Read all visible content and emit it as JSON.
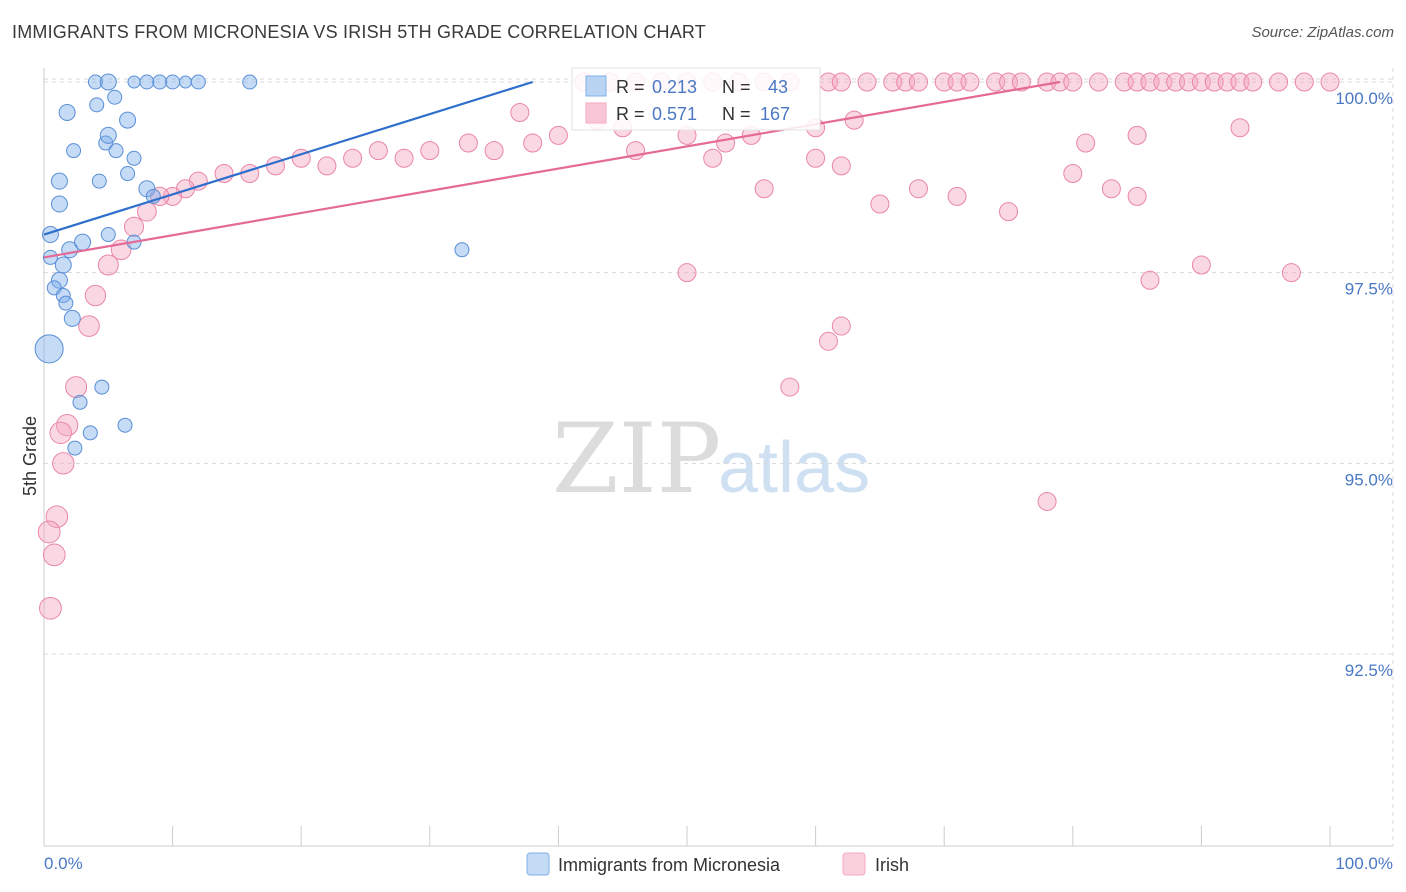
{
  "header": {
    "title": "IMMIGRANTS FROM MICRONESIA VS IRISH 5TH GRADE CORRELATION CHART",
    "source": "Source: ZipAtlas.com"
  },
  "watermark": {
    "zip": "ZIP",
    "atlas": "atlas"
  },
  "colors": {
    "blue": "#7fb0ea",
    "blue_stroke": "#5a8fd6",
    "blue_line": "#2f6fcc",
    "pink": "#f4a9c2",
    "pink_stroke": "#ea86a8",
    "pink_line": "#e46a97",
    "grid": "#d8d8d8",
    "tick_text": "#4a78c4"
  },
  "stats": {
    "blue": {
      "r_label": "R =",
      "r_value": "0.213",
      "n_label": "N =",
      "n_value": "43"
    },
    "pink": {
      "r_label": "R =",
      "r_value": "0.571",
      "n_label": "N =",
      "n_value": "167"
    }
  },
  "chart_data": {
    "type": "scatter",
    "title": "IMMIGRANTS FROM MICRONESIA VS IRISH 5TH GRADE CORRELATION CHART",
    "xlabel": "",
    "ylabel": "5th Grade",
    "xlim": [
      0,
      100
    ],
    "ylim": [
      90.2,
      100.2
    ],
    "x_tick_labels": [
      "0.0%",
      "100.0%"
    ],
    "y_ticks": [
      92.5,
      95.0,
      97.5,
      100.0
    ],
    "y_tick_labels": [
      "92.5%",
      "95.0%",
      "97.5%",
      "100.0%"
    ],
    "legend": [
      "Immigrants from Micronesia",
      "Irish"
    ],
    "series": [
      {
        "name": "Immigrants from Micronesia",
        "trend": [
          [
            0,
            98.0
          ],
          [
            38,
            100.0
          ]
        ],
        "points": [
          [
            4,
            100
          ],
          [
            5,
            100
          ],
          [
            7,
            100
          ],
          [
            8,
            100
          ],
          [
            9,
            100
          ],
          [
            10,
            100
          ],
          [
            11,
            100
          ],
          [
            12,
            100
          ],
          [
            16,
            100
          ],
          [
            1.8,
            99.6
          ],
          [
            4.1,
            99.7
          ],
          [
            6.5,
            99.5
          ],
          [
            5.5,
            99.8
          ],
          [
            4.8,
            99.2
          ],
          [
            5,
            99.3
          ],
          [
            5.6,
            99.1
          ],
          [
            2.3,
            99.1
          ],
          [
            7,
            99.0
          ],
          [
            1.2,
            98.7
          ],
          [
            4.3,
            98.7
          ],
          [
            6.5,
            98.8
          ],
          [
            8,
            98.6
          ],
          [
            8.5,
            98.5
          ],
          [
            1.2,
            98.4
          ],
          [
            0.5,
            98.0
          ],
          [
            5,
            98.0
          ],
          [
            7,
            97.9
          ],
          [
            2,
            97.8
          ],
          [
            3,
            97.9
          ],
          [
            0.5,
            97.7
          ],
          [
            1.5,
            97.6
          ],
          [
            1.2,
            97.4
          ],
          [
            0.8,
            97.3
          ],
          [
            1.5,
            97.2
          ],
          [
            1.7,
            97.1
          ],
          [
            2.2,
            96.9
          ],
          [
            0.4,
            96.5
          ],
          [
            4.5,
            96.0
          ],
          [
            2.8,
            95.8
          ],
          [
            3.6,
            95.4
          ],
          [
            6.3,
            95.5
          ],
          [
            2.4,
            95.2
          ],
          [
            32.5,
            97.8
          ]
        ],
        "sizes": [
          7,
          8,
          6,
          7,
          7,
          7,
          6,
          7,
          7,
          8,
          7,
          8,
          7,
          7,
          8,
          7,
          7,
          7,
          8,
          7,
          7,
          8,
          7,
          8,
          8,
          7,
          7,
          8,
          8,
          7,
          8,
          8,
          7,
          7,
          7,
          8,
          14,
          7,
          7,
          7,
          7,
          7,
          7
        ]
      },
      {
        "name": "Irish",
        "trend": [
          [
            0,
            97.7
          ],
          [
            79,
            100.0
          ]
        ],
        "points": [
          [
            42,
            100
          ],
          [
            44,
            100
          ],
          [
            46,
            100
          ],
          [
            48,
            100
          ],
          [
            50,
            100
          ],
          [
            52,
            100
          ],
          [
            54,
            100
          ],
          [
            56,
            100
          ],
          [
            58,
            100
          ],
          [
            61,
            100
          ],
          [
            62,
            100
          ],
          [
            64,
            100
          ],
          [
            66,
            100
          ],
          [
            67,
            100
          ],
          [
            68,
            100
          ],
          [
            70,
            100
          ],
          [
            71,
            100
          ],
          [
            72,
            100
          ],
          [
            74,
            100
          ],
          [
            75,
            100
          ],
          [
            76,
            100
          ],
          [
            78,
            100
          ],
          [
            79,
            100
          ],
          [
            80,
            100
          ],
          [
            82,
            100
          ],
          [
            84,
            100
          ],
          [
            85,
            100
          ],
          [
            86,
            100
          ],
          [
            87,
            100
          ],
          [
            88,
            100
          ],
          [
            89,
            100
          ],
          [
            90,
            100
          ],
          [
            91,
            100
          ],
          [
            92,
            100
          ],
          [
            93,
            100
          ],
          [
            94,
            100
          ],
          [
            96,
            100
          ],
          [
            98,
            100
          ],
          [
            100,
            100
          ],
          [
            37,
            99.6
          ],
          [
            43,
            99.5
          ],
          [
            45,
            99.4
          ],
          [
            50,
            99.3
          ],
          [
            53,
            99.2
          ],
          [
            55,
            99.3
          ],
          [
            60,
            99.4
          ],
          [
            63,
            99.5
          ],
          [
            40,
            99.3
          ],
          [
            38,
            99.2
          ],
          [
            35,
            99.1
          ],
          [
            33,
            99.2
          ],
          [
            30,
            99.1
          ],
          [
            28,
            99.0
          ],
          [
            26,
            99.1
          ],
          [
            24,
            99.0
          ],
          [
            22,
            98.9
          ],
          [
            20,
            99.0
          ],
          [
            18,
            98.9
          ],
          [
            16,
            98.8
          ],
          [
            14,
            98.8
          ],
          [
            12,
            98.7
          ],
          [
            11,
            98.6
          ],
          [
            10,
            98.5
          ],
          [
            9,
            98.5
          ],
          [
            8,
            98.3
          ],
          [
            7,
            98.1
          ],
          [
            6,
            97.8
          ],
          [
            5,
            97.6
          ],
          [
            4,
            97.2
          ],
          [
            3.5,
            96.8
          ],
          [
            2.5,
            96.0
          ],
          [
            1.8,
            95.5
          ],
          [
            1.5,
            95.0
          ],
          [
            1,
            94.3
          ],
          [
            0.8,
            93.8
          ],
          [
            0.5,
            93.1
          ],
          [
            0.4,
            94.1
          ],
          [
            1.3,
            95.4
          ],
          [
            46,
            99.1
          ],
          [
            52,
            99.0
          ],
          [
            56,
            98.6
          ],
          [
            60,
            99.0
          ],
          [
            62,
            98.9
          ],
          [
            65,
            98.4
          ],
          [
            68,
            98.6
          ],
          [
            71,
            98.5
          ],
          [
            75,
            98.3
          ],
          [
            80,
            98.8
          ],
          [
            81,
            99.2
          ],
          [
            83,
            98.6
          ],
          [
            85,
            98.5
          ],
          [
            86,
            97.4
          ],
          [
            90,
            97.6
          ],
          [
            93,
            99.4
          ],
          [
            97,
            97.5
          ],
          [
            78,
            94.5
          ],
          [
            58,
            96.0
          ],
          [
            61,
            96.6
          ],
          [
            62,
            96.8
          ],
          [
            50,
            97.5
          ],
          [
            85,
            99.3
          ]
        ]
      }
    ]
  },
  "axes": {
    "ylabel": "5th Grade",
    "x_tick_left": "0.0%",
    "x_tick_right": "100.0%",
    "y_tick_labels": [
      "100.0%",
      "97.5%",
      "95.0%",
      "92.5%"
    ]
  },
  "legend": {
    "blue_label": "Immigrants from Micronesia",
    "pink_label": "Irish"
  }
}
